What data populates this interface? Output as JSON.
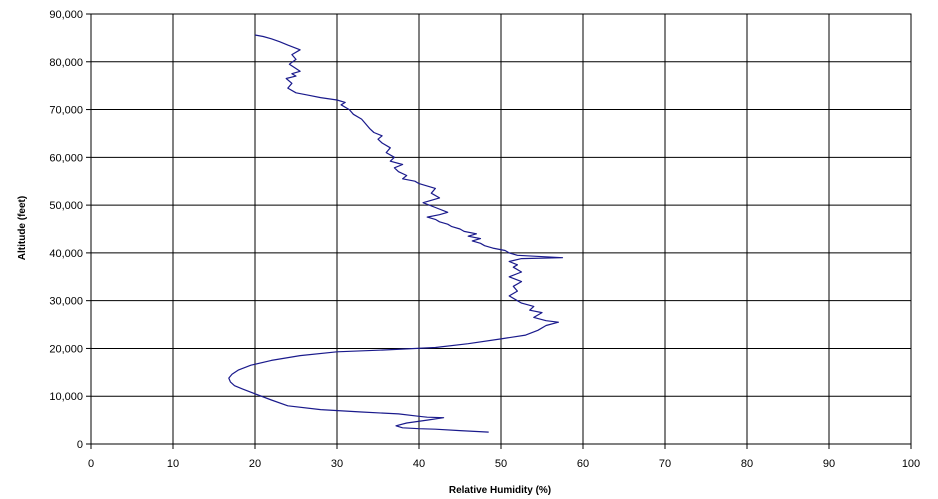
{
  "chart_data": {
    "type": "line",
    "title": "",
    "xlabel": "Relative Humidity (%)",
    "ylabel": "Altitude (feet)",
    "xlim": [
      0,
      100
    ],
    "ylim": [
      0,
      90000
    ],
    "x_ticks": [
      0,
      10,
      20,
      30,
      40,
      50,
      60,
      70,
      80,
      90,
      100
    ],
    "y_ticks": [
      0,
      10000,
      20000,
      30000,
      40000,
      50000,
      60000,
      70000,
      80000,
      90000
    ],
    "x_tick_labels": [
      "0",
      "10",
      "20",
      "30",
      "40",
      "50",
      "60",
      "70",
      "80",
      "90",
      "100"
    ],
    "y_tick_labels": [
      "0",
      "10,000",
      "20,000",
      "30,000",
      "40,000",
      "50,000",
      "60,000",
      "70,000",
      "80,000",
      "90,000"
    ],
    "grid": true,
    "legend": "none",
    "line_color": "#1a1a8c",
    "series": [
      {
        "x": [
          48.5,
          45.0,
          42.0,
          40.0,
          38.0,
          37.2,
          38.5,
          41.0,
          43.0,
          41.0,
          40.0,
          37.5,
          33.0,
          28.0,
          24.0,
          22.0,
          20.0,
          18.5,
          17.5,
          17.0,
          16.8,
          17.2,
          18.0,
          19.5,
          22.0,
          25.5,
          30.0,
          36.0,
          42.0,
          46.0,
          50.0,
          53.0,
          54.5,
          55.5,
          57.0,
          55.5,
          54.0,
          55.0,
          53.5,
          54.0,
          52.5,
          52.0,
          51.0,
          52.0,
          51.5,
          52.5,
          51.0,
          52.5,
          51.5,
          52.0,
          51.0,
          52.5,
          57.5,
          52.0,
          51.0,
          50.5,
          49.0,
          48.0,
          47.5,
          46.5,
          47.5,
          46.0,
          47.0,
          45.5,
          45.0,
          44.0,
          43.5,
          42.5,
          42.0,
          41.0,
          42.5,
          43.5,
          42.0,
          40.5,
          42.5,
          41.5,
          42.0,
          40.0,
          39.5,
          38.0,
          38.5,
          37.5,
          37.0,
          38.0,
          36.5,
          37.0,
          36.0,
          36.5,
          35.5,
          35.0,
          35.5,
          34.5,
          34.0,
          33.5,
          33.0,
          32.0,
          31.5,
          30.5,
          31.0,
          30.0,
          28.0,
          26.5,
          25.0,
          24.0,
          24.5,
          23.8,
          25.0,
          24.5,
          25.5,
          24.8,
          24.2,
          25.0,
          24.5,
          25.5,
          24.0,
          23.0,
          22.0,
          21.0,
          20.0
        ],
        "y": [
          2500,
          2800,
          3100,
          3200,
          3400,
          3800,
          4400,
          5000,
          5500,
          5600,
          5800,
          6300,
          6700,
          7200,
          8000,
          9200,
          10500,
          11500,
          12200,
          13000,
          13800,
          14600,
          15500,
          16500,
          17500,
          18500,
          19300,
          19700,
          20200,
          21000,
          22000,
          22800,
          23800,
          24800,
          25500,
          25800,
          26500,
          27500,
          28000,
          28800,
          29500,
          30000,
          31000,
          32000,
          33000,
          34000,
          35000,
          36000,
          37000,
          37500,
          38200,
          38800,
          39000,
          39500,
          40000,
          40500,
          41000,
          41500,
          42000,
          42500,
          43000,
          43500,
          44000,
          44500,
          45000,
          45500,
          46000,
          46500,
          47000,
          47500,
          48000,
          48500,
          49500,
          50500,
          51500,
          52500,
          53500,
          54500,
          55000,
          55500,
          56200,
          57000,
          57800,
          58500,
          59200,
          60000,
          61000,
          62000,
          63000,
          63800,
          64500,
          65200,
          66000,
          67000,
          68000,
          69000,
          70000,
          71000,
          71500,
          72000,
          72500,
          73000,
          73500,
          74500,
          75500,
          76500,
          77000,
          77500,
          78000,
          78800,
          79500,
          80500,
          81500,
          82500,
          83500,
          84200,
          84800,
          85300,
          85600
        ]
      }
    ]
  }
}
